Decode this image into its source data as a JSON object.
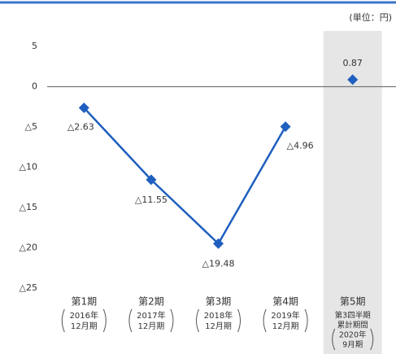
{
  "chart_data": {
    "type": "line",
    "unit_label": "(単位：円)",
    "categories": [
      [
        "第1期",
        "2016年",
        "12月期"
      ],
      [
        "第2期",
        "2017年",
        "12月期"
      ],
      [
        "第3期",
        "2018年",
        "12月期"
      ],
      [
        "第4期",
        "2019年",
        "12月期"
      ],
      [
        "第5期",
        "第3四半期",
        "累計期間",
        "2020年",
        "9月期"
      ]
    ],
    "series": [
      {
        "color": "#1f5fbf",
        "values": [
          -2.63,
          -11.55,
          -19.48,
          -4.96,
          null
        ],
        "value_labels": [
          "△2.63",
          "△11.55",
          "△19.48",
          "△4.96",
          null
        ]
      },
      {
        "color": "#1f5fbf",
        "values": [
          null,
          null,
          null,
          null,
          0.87
        ],
        "value_labels": [
          null,
          null,
          null,
          null,
          "0.87"
        ]
      }
    ],
    "ylim": [
      -25,
      5
    ],
    "yticks": [
      5,
      0,
      {
        "value": -5,
        "label": "△5"
      },
      {
        "value": -10,
        "label": "△10"
      },
      {
        "value": -15,
        "label": "△15"
      },
      {
        "value": -20,
        "label": "△20"
      },
      {
        "value": -25,
        "label": "△25"
      }
    ],
    "grid": false,
    "zero_line": true,
    "highlight_index": 4
  }
}
